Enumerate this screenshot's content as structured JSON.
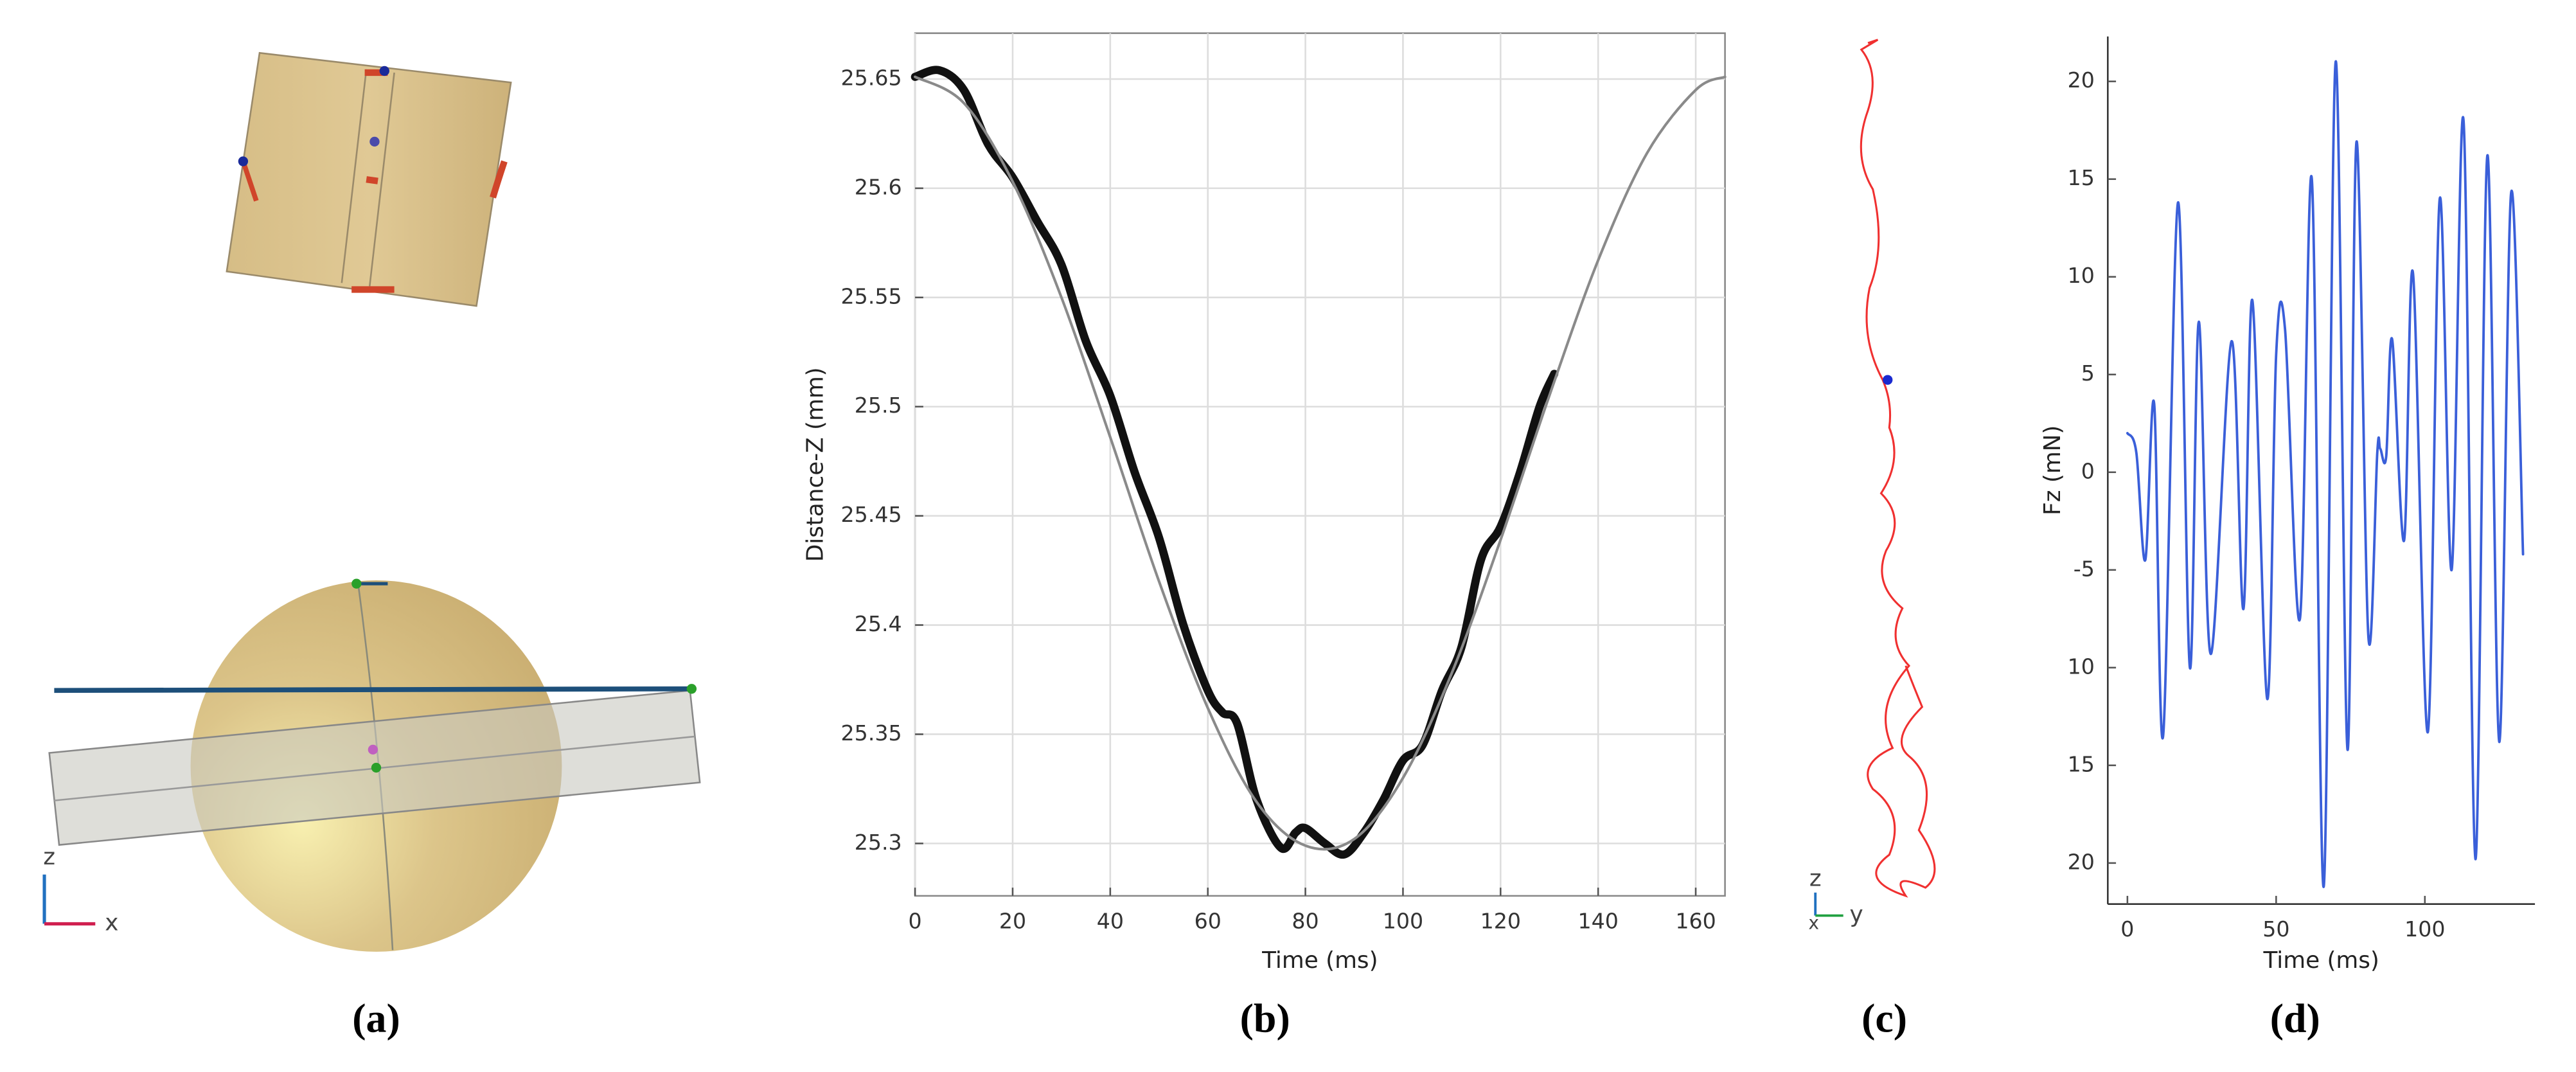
{
  "panel_labels": [
    "(a)",
    "(b)",
    "(c)",
    "(d)"
  ],
  "illustration_a": {
    "axis_labels": [
      "z",
      "x"
    ]
  },
  "illustration_c": {
    "axis_labels": [
      "z",
      "y",
      "x"
    ]
  },
  "chart_data": [
    {
      "type": "line",
      "x_label": "Time (ms)",
      "y_label": "Distance-Z (mm)",
      "xlim": [
        0,
        166
      ],
      "ylim": [
        25.276,
        25.671
      ],
      "xticks": [
        0,
        20,
        40,
        60,
        80,
        100,
        120,
        140,
        160
      ],
      "yticks": [
        25.3,
        25.35,
        25.4,
        25.45,
        25.5,
        25.55,
        25.6,
        25.65
      ],
      "grid": true,
      "series": [
        {
          "color": "#111111",
          "x": [
            0,
            5,
            10,
            15,
            20,
            25,
            30,
            35,
            40,
            45,
            50,
            55,
            60,
            63,
            66,
            70,
            75,
            78,
            80,
            84,
            88,
            92,
            96,
            100,
            104,
            108,
            112,
            116,
            120,
            124,
            128,
            131
          ],
          "values": [
            25.651,
            25.654,
            25.645,
            25.62,
            25.605,
            25.585,
            25.565,
            25.53,
            25.505,
            25.47,
            25.44,
            25.4,
            25.37,
            25.36,
            25.355,
            25.32,
            25.298,
            25.305,
            25.307,
            25.3,
            25.295,
            25.305,
            25.32,
            25.338,
            25.345,
            25.37,
            25.39,
            25.43,
            25.445,
            25.47,
            25.5,
            25.515
          ]
        },
        {
          "color": "#8a8a8a",
          "x": [
            0,
            10,
            20,
            30,
            40,
            50,
            60,
            70,
            80,
            90,
            100,
            110,
            120,
            130,
            140,
            150,
            160,
            166
          ],
          "values": [
            25.651,
            25.639,
            25.603,
            25.55,
            25.486,
            25.42,
            25.362,
            25.319,
            25.299,
            25.302,
            25.33,
            25.378,
            25.439,
            25.505,
            25.567,
            25.616,
            25.645,
            25.651
          ]
        }
      ]
    },
    {
      "type": "line",
      "x_label": "Time (ms)",
      "y_label": "Fz (mN)",
      "xlim": [
        -6.6,
        137
      ],
      "ylim": [
        -22.1,
        22.3
      ],
      "xticks": [
        0,
        50,
        100
      ],
      "yticks": [
        20,
        15,
        10,
        5,
        0,
        -5,
        {
          "value": -10,
          "label": "10"
        },
        {
          "value": -15,
          "label": "15"
        },
        {
          "value": -20,
          "label": "20"
        }
      ],
      "grid": false,
      "series": [
        {
          "color": "#3a5fd9",
          "x": [
            0,
            3,
            6,
            9,
            12,
            17,
            21,
            24,
            28,
            35,
            39,
            42,
            47,
            50,
            53,
            58,
            62,
            66,
            70,
            74,
            77,
            81,
            84,
            85,
            87,
            89,
            93,
            96,
            101,
            105,
            109,
            113,
            117,
            121,
            125,
            129,
            133
          ],
          "values": [
            2,
            1,
            -4.5,
            3.5,
            -13.5,
            13.8,
            -10,
            7.7,
            -9.3,
            6.7,
            -7,
            8.8,
            -11.6,
            6,
            7.3,
            -7.5,
            15,
            -21.2,
            21,
            -14.2,
            16.9,
            -8.4,
            1,
            1.2,
            0.8,
            6.8,
            -3.5,
            10.2,
            -13.3,
            14,
            -5,
            18,
            -19.8,
            16.2,
            -13.8,
            14.3,
            -4.2
          ]
        }
      ]
    }
  ]
}
